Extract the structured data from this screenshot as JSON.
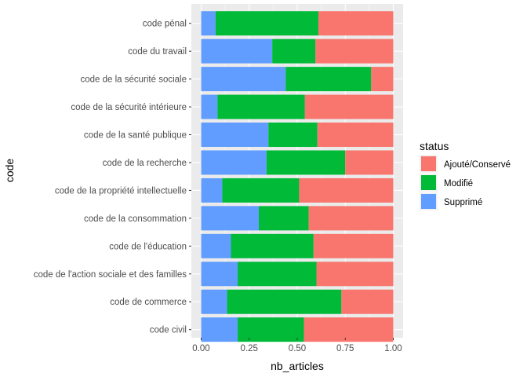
{
  "chart_data": {
    "type": "bar",
    "orientation": "horizontal",
    "stacked": true,
    "xlabel": "nb_articles",
    "ylabel": "code",
    "xlim": [
      0,
      1
    ],
    "x_ticks": [
      "0.00",
      "0.25",
      "0.50",
      "0.75",
      "1.00"
    ],
    "grid": true,
    "categories": [
      "code pénal",
      "code du travail",
      "code de la sécurité sociale",
      "code de la sécurité intérieure",
      "code de la santé publique",
      "code de la recherche",
      "code de la propriété intellectuelle",
      "code de la consommation",
      "code de l'éducation",
      "code de l'action sociale et des familles",
      "code de commerce",
      "code civil"
    ],
    "series": [
      {
        "name": "Supprimé",
        "color": "#619CFF",
        "values": [
          0.075,
          0.37,
          0.44,
          0.085,
          0.35,
          0.34,
          0.11,
          0.3,
          0.155,
          0.19,
          0.135,
          0.19
        ]
      },
      {
        "name": "Modifié",
        "color": "#00BA38",
        "values": [
          0.535,
          0.225,
          0.445,
          0.455,
          0.255,
          0.41,
          0.4,
          0.26,
          0.43,
          0.41,
          0.595,
          0.345
        ]
      },
      {
        "name": "Ajouté/Conservé",
        "color": "#F8766D",
        "values": [
          0.39,
          0.405,
          0.115,
          0.46,
          0.395,
          0.25,
          0.49,
          0.44,
          0.415,
          0.4,
          0.27,
          0.465
        ]
      }
    ],
    "legend": {
      "title": "status",
      "position": "right",
      "items": [
        "Ajouté/Conservé",
        "Modifié",
        "Supprimé"
      ]
    }
  }
}
